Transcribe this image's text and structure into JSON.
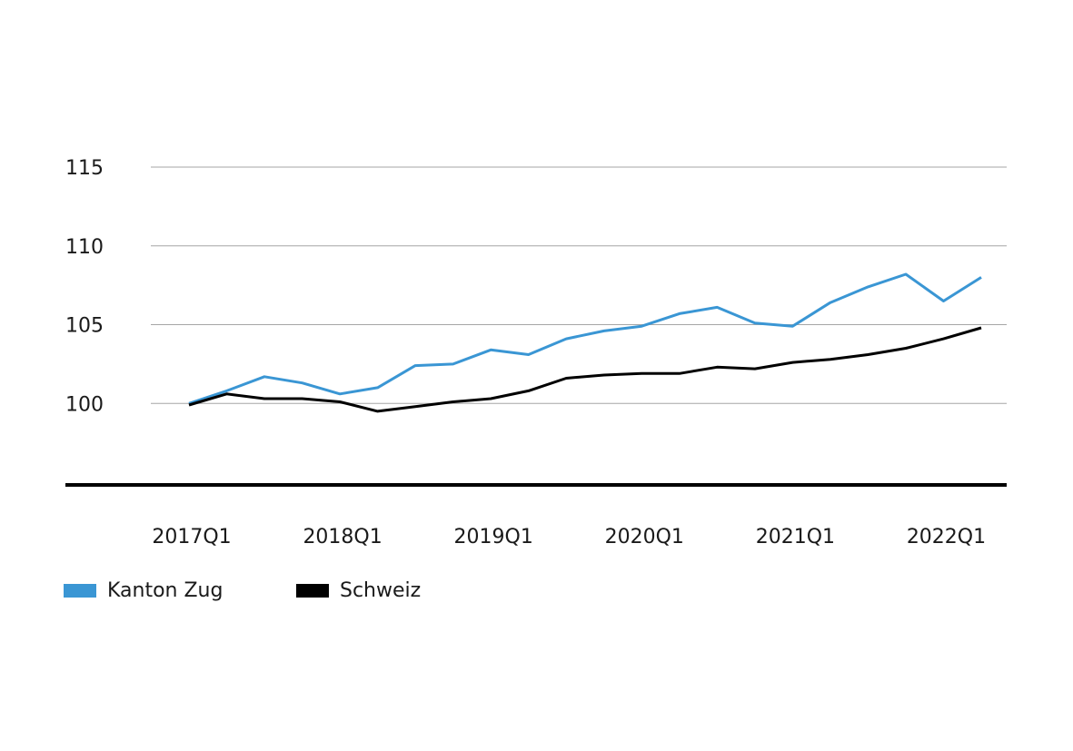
{
  "chart_data": {
    "type": "line",
    "title": "",
    "xlabel": "",
    "ylabel": "",
    "ylim": [
      95,
      115
    ],
    "yticks": [
      100,
      105,
      110,
      115
    ],
    "grid": true,
    "legend_position": "bottom-left",
    "x_tick_labels": [
      "2017Q1",
      "2018Q1",
      "2019Q1",
      "2020Q1",
      "2021Q1",
      "2022Q1"
    ],
    "categories": [
      "2017Q1",
      "2017Q2",
      "2017Q3",
      "2017Q4",
      "2018Q1",
      "2018Q2",
      "2018Q3",
      "2018Q4",
      "2019Q1",
      "2019Q2",
      "2019Q3",
      "2019Q4",
      "2020Q1",
      "2020Q2",
      "2020Q3",
      "2020Q4",
      "2021Q1",
      "2021Q2",
      "2021Q3",
      "2021Q4",
      "2022Q1",
      "2022Q2"
    ],
    "series": [
      {
        "name": "Kanton Zug",
        "color": "#3a96d4",
        "values": [
          100.0,
          100.8,
          101.7,
          101.3,
          100.6,
          101.0,
          102.4,
          102.5,
          103.4,
          103.1,
          104.1,
          104.6,
          104.9,
          105.7,
          106.1,
          105.1,
          104.9,
          106.4,
          107.4,
          108.2,
          106.5,
          108.0
        ]
      },
      {
        "name": "Schweiz",
        "color": "#000000",
        "values": [
          99.9,
          100.6,
          100.3,
          100.3,
          100.1,
          99.5,
          99.8,
          100.1,
          100.3,
          100.8,
          101.6,
          101.8,
          101.9,
          101.9,
          102.3,
          102.2,
          102.6,
          102.8,
          103.1,
          103.5,
          104.1,
          104.8
        ]
      }
    ]
  }
}
